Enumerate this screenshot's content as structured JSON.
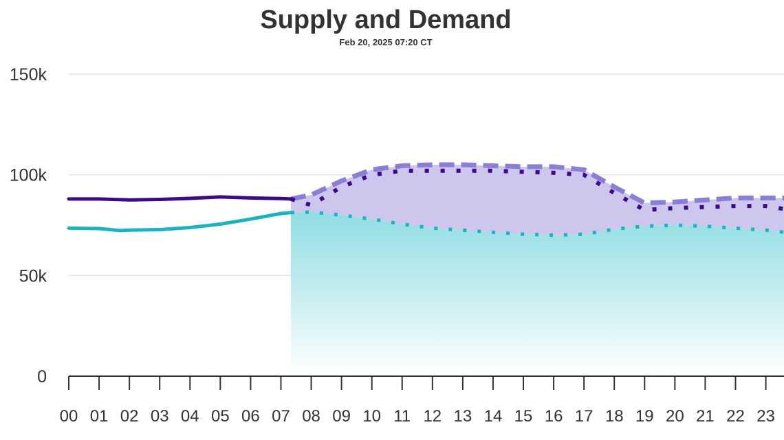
{
  "chart_data": {
    "type": "line",
    "title": "Supply and Demand",
    "subtitle": "Feb 20, 2025 07:20 CT",
    "xlabel": "",
    "ylabel": "",
    "x_ticks": [
      "00",
      "01",
      "02",
      "03",
      "04",
      "05",
      "06",
      "07",
      "08",
      "09",
      "10",
      "11",
      "12",
      "13",
      "14",
      "15",
      "16",
      "17",
      "18",
      "19",
      "20",
      "21",
      "22",
      "23"
    ],
    "y_ticks": [
      {
        "value": 0,
        "label": "0"
      },
      {
        "value": 50000,
        "label": "50k"
      },
      {
        "value": 100000,
        "label": "100k"
      },
      {
        "value": 150000,
        "label": "150k"
      }
    ],
    "ylim": [
      0,
      150000
    ],
    "xlim": [
      0,
      23.6
    ],
    "now_hour": 7.33,
    "grid": true,
    "legend": "none",
    "colors": {
      "demand": "#3b0a8c",
      "supply": "#1ab3bf",
      "supply_forecast_band": "#8a7fd6",
      "band_fill": "#cdc7ee",
      "supply_fill_top": "#8fdde3",
      "grid": "#e2e2e2",
      "axis": "#333333"
    },
    "series": [
      {
        "key": "demand_actual",
        "style": "solid",
        "x": [
          0,
          1,
          2,
          3,
          4,
          5,
          6,
          7,
          7.33
        ],
        "values": [
          88000,
          88000,
          87500,
          87800,
          88300,
          89000,
          88500,
          88200,
          88000
        ]
      },
      {
        "key": "supply_actual",
        "style": "solid",
        "x": [
          0,
          1,
          1.7,
          2,
          3,
          4,
          5,
          6,
          7,
          7.33
        ],
        "values": [
          73500,
          73300,
          72300,
          72500,
          72800,
          73800,
          75500,
          78000,
          80800,
          81200
        ]
      },
      {
        "key": "supply_capacity_forecast",
        "style": "dashed",
        "x": [
          7.33,
          8,
          9,
          10,
          11,
          12,
          13,
          14,
          15,
          16,
          17,
          18,
          19,
          20,
          21,
          22,
          23,
          23.6
        ],
        "values": [
          88000,
          90000,
          97000,
          102500,
          104500,
          105000,
          105000,
          104500,
          104000,
          104000,
          102500,
          94000,
          86000,
          86500,
          87500,
          88500,
          88500,
          88500
        ]
      },
      {
        "key": "demand_forecast",
        "style": "dotted",
        "x": [
          7.33,
          8,
          9,
          10,
          11,
          12,
          13,
          14,
          15,
          16,
          17,
          18,
          19,
          20,
          21,
          22,
          23,
          23.6
        ],
        "values": [
          88000,
          85000,
          94000,
          100000,
          102000,
          102000,
          102000,
          102000,
          101500,
          101000,
          100000,
          91000,
          82500,
          83500,
          84000,
          84500,
          84500,
          83000
        ]
      },
      {
        "key": "supply_forecast",
        "style": "dotted",
        "x": [
          7.33,
          8,
          9,
          10,
          11,
          12,
          13,
          14,
          15,
          16,
          17,
          18,
          19,
          20,
          21,
          22,
          23,
          23.6
        ],
        "values": [
          81200,
          81500,
          80000,
          78000,
          75500,
          73500,
          72500,
          71500,
          70500,
          70000,
          70500,
          73000,
          74500,
          75000,
          74500,
          73500,
          72500,
          71500
        ]
      }
    ]
  }
}
